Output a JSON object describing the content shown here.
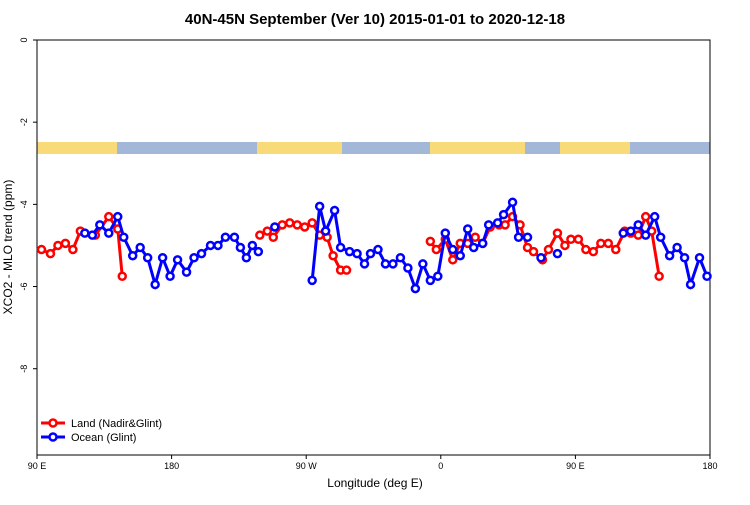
{
  "chart_data": {
    "type": "line",
    "title": "40N-45N September (Ver 10)   2015-01-01 to 2020-12-18",
    "x_label": "Longitude (deg E)",
    "y_label": "XCO2 - MLO trend (ppm)",
    "xlim": [
      90,
      540
    ],
    "ylim": [
      -10.1,
      0
    ],
    "xticks": [
      {
        "value": 90,
        "label": "90 E"
      },
      180,
      {
        "value": 270,
        "label": "90 W"
      },
      {
        "value": 360,
        "label": "0"
      },
      {
        "value": 450,
        "label": "90 E"
      },
      {
        "value": 540,
        "label": "180"
      }
    ],
    "yticks": [
      0,
      -2,
      -4,
      -6,
      -8
    ],
    "legend": "bottom-left",
    "series": [
      {
        "name": "Land (Nadir&Glint)",
        "color": "#ff0000",
        "x": [
          93,
          99,
          104,
          109,
          114,
          119,
          129,
          138,
          144,
          147,
          null,
          239,
          244,
          248,
          254,
          259,
          264,
          269,
          274,
          279,
          284,
          288,
          293,
          297,
          null,
          353,
          357,
          363,
          368,
          373,
          378,
          383,
          388,
          393,
          399,
          403,
          408,
          413,
          418,
          422,
          428,
          432,
          438,
          443,
          447,
          452,
          457,
          462,
          467,
          472,
          477,
          483,
          487,
          492,
          497,
          501,
          506
        ],
        "values": [
          -5.1,
          -5.2,
          -5.0,
          -4.95,
          -5.1,
          -4.65,
          -4.75,
          -4.3,
          -4.6,
          -5.75,
          null,
          -4.75,
          -4.65,
          -4.8,
          -4.5,
          -4.45,
          -4.5,
          -4.55,
          -4.45,
          -4.75,
          -4.8,
          -5.25,
          -5.6,
          -5.6,
          null,
          -4.9,
          -5.1,
          -4.85,
          -5.35,
          -4.95,
          -4.95,
          -4.8,
          -4.95,
          -4.55,
          -4.5,
          -4.5,
          -4.3,
          -4.5,
          -5.05,
          -5.15,
          -5.35,
          -5.1,
          -4.7,
          -5.0,
          -4.85,
          -4.85,
          -5.1,
          -5.15,
          -4.95,
          -4.95,
          -5.1,
          -4.65,
          -4.7,
          -4.75,
          -4.3,
          -4.65,
          -5.75
        ]
      },
      {
        "name": "Ocean (Glint)",
        "color": "#0000ff",
        "x": [
          122,
          127,
          132,
          138,
          144,
          148,
          154,
          159,
          164,
          169,
          174,
          179,
          184,
          190,
          195,
          200,
          206,
          211,
          216,
          222,
          226,
          230,
          234,
          238,
          null,
          249,
          null,
          274,
          279,
          283,
          289,
          293,
          299,
          304,
          309,
          313,
          318,
          323,
          328,
          333,
          338,
          343,
          348,
          353,
          358,
          363,
          368,
          373,
          378,
          382,
          388,
          392,
          398,
          402,
          408,
          412,
          418,
          null,
          427,
          null,
          438,
          null,
          482,
          487,
          492,
          497,
          503,
          507,
          513,
          518,
          523,
          527,
          533,
          538
        ],
        "values": [
          -4.7,
          -4.75,
          -4.5,
          -4.7,
          -4.3,
          -4.8,
          -5.25,
          -5.05,
          -5.3,
          -5.95,
          -5.3,
          -5.75,
          -5.35,
          -5.65,
          -5.3,
          -5.2,
          -5.0,
          -5.0,
          -4.8,
          -4.8,
          -5.05,
          -5.3,
          -5.0,
          -5.15,
          null,
          -4.55,
          null,
          -5.85,
          -4.05,
          -4.65,
          -4.15,
          -5.05,
          -5.15,
          -5.2,
          -5.45,
          -5.2,
          -5.1,
          -5.45,
          -5.45,
          -5.3,
          -5.55,
          -6.05,
          -5.45,
          -5.85,
          -5.75,
          -4.7,
          -5.1,
          -5.25,
          -4.6,
          -5.05,
          -4.95,
          -4.5,
          -4.45,
          -4.25,
          -3.95,
          -4.8,
          -4.8,
          null,
          -5.3,
          null,
          -5.2,
          null,
          -4.7,
          -4.65,
          -4.5,
          -4.75,
          -4.3,
          -4.8,
          -5.25,
          -5.05,
          -5.3,
          -5.95,
          -5.3,
          -5.75
        ]
      }
    ]
  }
}
